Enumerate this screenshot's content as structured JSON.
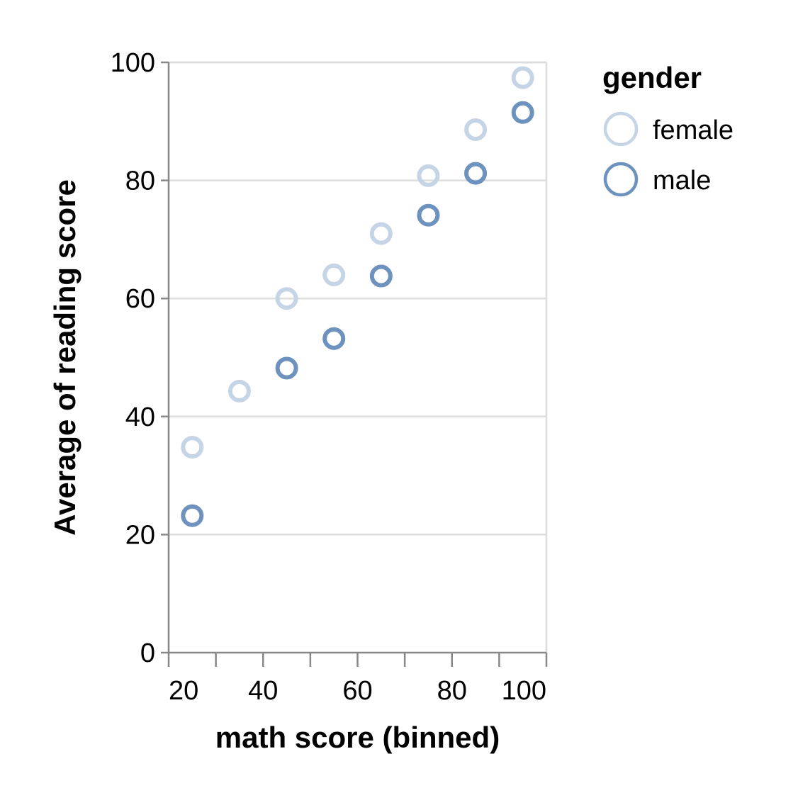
{
  "chart_data": {
    "type": "scatter",
    "xlabel": "math score (binned)",
    "ylabel": "Average of reading score",
    "xlim": [
      20,
      100
    ],
    "ylim": [
      0,
      100
    ],
    "x_ticks": [
      20,
      40,
      60,
      80,
      100
    ],
    "x_minor_ticks": [
      30,
      50,
      70,
      90
    ],
    "y_ticks": [
      0,
      20,
      40,
      60,
      80,
      100
    ],
    "grid": true,
    "marker": "hollow-circle",
    "legend": {
      "title": "gender",
      "position": "right"
    },
    "series": [
      {
        "name": "female",
        "color": "#c6d5e6",
        "points": [
          {
            "x": 25,
            "y": 34.8
          },
          {
            "x": 35,
            "y": 44.3
          },
          {
            "x": 45,
            "y": 60.0
          },
          {
            "x": 55,
            "y": 64.0
          },
          {
            "x": 65,
            "y": 71.0
          },
          {
            "x": 75,
            "y": 80.8
          },
          {
            "x": 85,
            "y": 88.6
          },
          {
            "x": 95,
            "y": 97.4
          }
        ]
      },
      {
        "name": "male",
        "color": "#6d92bd",
        "points": [
          {
            "x": 25,
            "y": 23.2
          },
          {
            "x": 45,
            "y": 48.2
          },
          {
            "x": 55,
            "y": 53.2
          },
          {
            "x": 65,
            "y": 63.8
          },
          {
            "x": 75,
            "y": 74.1
          },
          {
            "x": 85,
            "y": 81.2
          },
          {
            "x": 95,
            "y": 91.5
          }
        ]
      }
    ]
  }
}
